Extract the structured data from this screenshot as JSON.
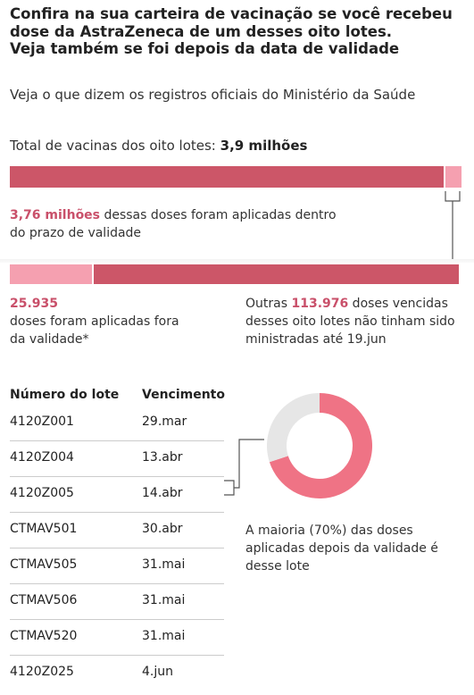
{
  "title_lines": [
    "Confira na sua carteira de vacinação se você recebeu",
    "dose da AstraZeneca de um desses oito lotes.",
    "Veja também se foi depois da data de validade"
  ],
  "subtitle": "Veja o que dizem os registros oficiais do Ministério da Saúde",
  "total": {
    "label": "Total de vacinas dos oito lotes: ",
    "value": "3,9 milhões"
  },
  "within_validity": {
    "value": "3,76 milhões",
    "text_line1": " dessas doses foram aplicadas dentro",
    "text_line2": "do prazo de validade"
  },
  "after_validity": {
    "value": "25.935",
    "text_line1": "doses foram aplicadas fora",
    "text_line2": "da validade*"
  },
  "expired_unused": {
    "prefix": "Outras ",
    "value": "113.976",
    "text_line1": " doses vencidas",
    "text_line2": "desses oito lotes não tinham sido",
    "text_line3": "ministradas até 19.jun"
  },
  "table": {
    "headers": [
      "Número do lote",
      "Vencimento"
    ],
    "rows": [
      [
        "4120Z001",
        "29.mar"
      ],
      [
        "4120Z004",
        "13.abr"
      ],
      [
        "4120Z005",
        "14.abr"
      ],
      [
        "CTMAV501",
        "30.abr"
      ],
      [
        "CTMAV505",
        "31.mai"
      ],
      [
        "CTMAV506",
        "31.mai"
      ],
      [
        "CTMAV520",
        "31.mai"
      ],
      [
        "4120Z025",
        "4.jun"
      ]
    ]
  },
  "donut_note": [
    "A maioria (70%) das doses",
    "aplicadas depois da validade é",
    "desse lote"
  ],
  "colors": {
    "primary": "#cc5668",
    "light": "#f5a0b0",
    "donut": "#ef7385",
    "donut_rest": "#e6e6e6",
    "highlight_text": "#c9506a"
  },
  "chart_data": [
    {
      "type": "bar",
      "title": "Total de vacinas dos oito lotes: 3,9 milhões",
      "orientation": "horizontal-stacked",
      "categories": [
        "aplicadas dentro do prazo de validade",
        "vencidas / fora da validade"
      ],
      "values": [
        3760000,
        139911
      ]
    },
    {
      "type": "bar",
      "orientation": "horizontal-stacked",
      "categories": [
        "aplicadas fora da validade",
        "vencidas não ministradas até 19.jun"
      ],
      "values": [
        25935,
        113976
      ]
    },
    {
      "type": "pie",
      "categories": [
        "4120Z005",
        "demais lotes"
      ],
      "values": [
        70,
        30
      ]
    }
  ]
}
